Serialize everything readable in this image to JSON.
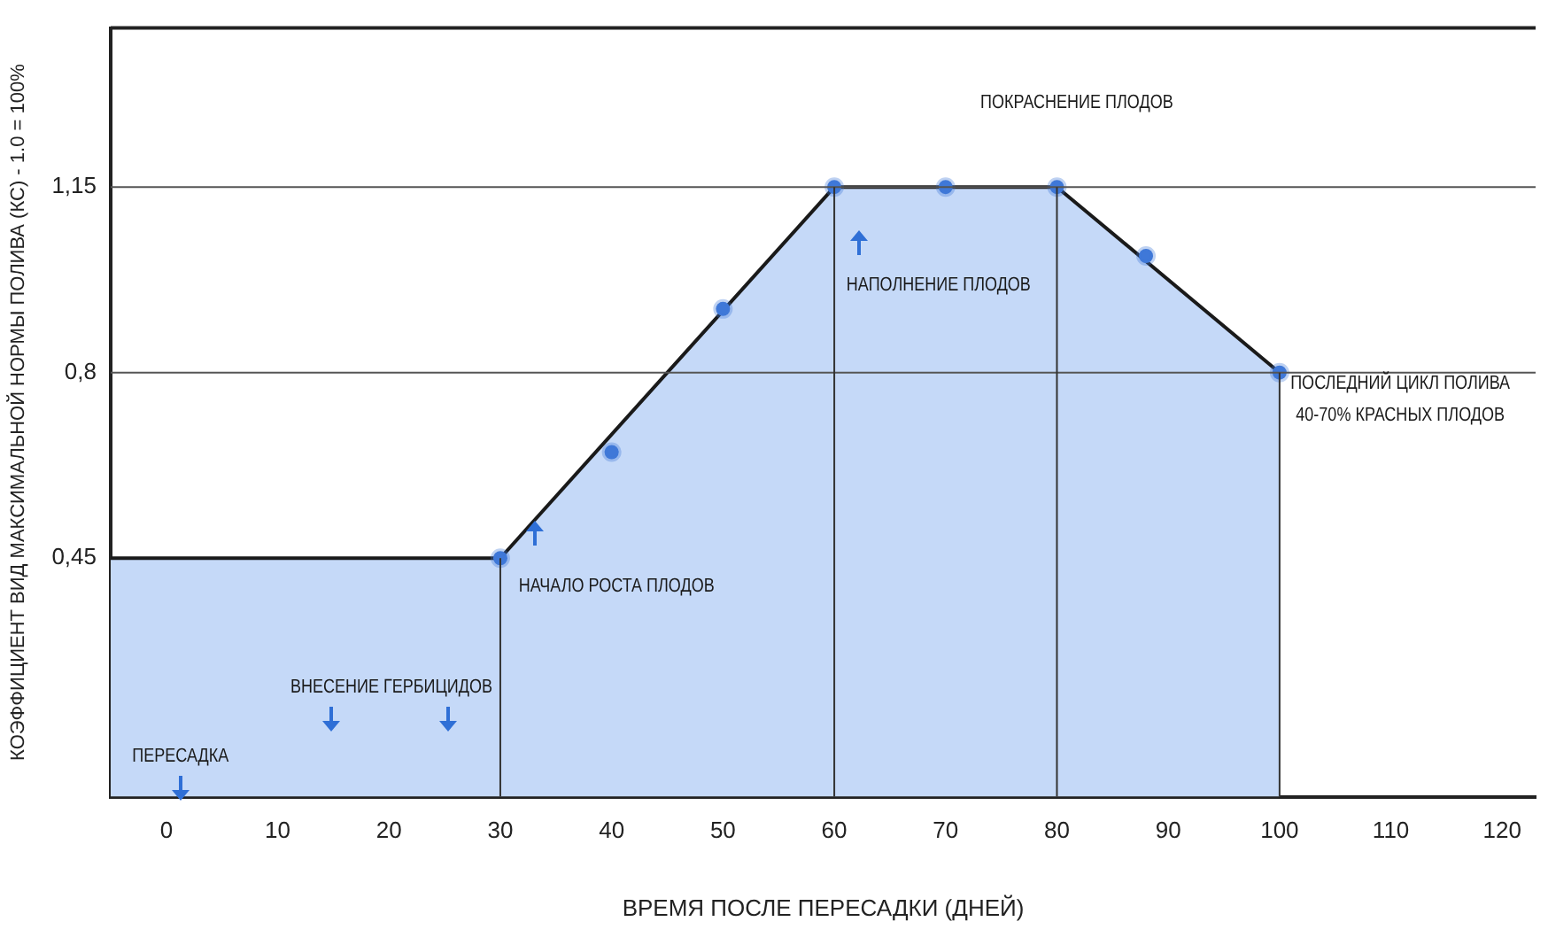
{
  "chart_data": {
    "type": "area",
    "xlabel": "ВРЕМЯ ПОСЛЕ ПЕРЕСАДКИ (ДНЕЙ)",
    "ylabel": "КОЭФФИЦИЕНТ ВИД МАКСИМАЛЬНОЙ НОРМЫ ПОЛИВА (КС) - 1.0 = 100%",
    "xlim": [
      -5,
      123
    ],
    "xticks": [
      0,
      10,
      20,
      30,
      40,
      50,
      60,
      70,
      80,
      90,
      100,
      110,
      120
    ],
    "ylim": [
      0,
      1.45
    ],
    "yticks": [
      {
        "value": 0.45,
        "label": "0,45"
      },
      {
        "value": 0.8,
        "label": "0,8"
      },
      {
        "value": 1.15,
        "label": "1,15"
      }
    ],
    "grid": false,
    "legend": false,
    "series": [
      {
        "color": "#c5d9f8",
        "marker": "none",
        "x": [
          -5,
          30,
          60,
          80,
          100
        ],
        "values": [
          0.45,
          0.45,
          1.15,
          1.15,
          0.8
        ]
      },
      {
        "type": "scatter",
        "color": "#3f78d8",
        "marker": "circle",
        "x": [
          30,
          40,
          50,
          60,
          70,
          80,
          88,
          100
        ],
        "values": [
          0.45,
          0.65,
          0.92,
          1.15,
          1.15,
          1.15,
          1.02,
          0.8
        ]
      }
    ],
    "ref_lines": [
      {
        "axis": "y",
        "value": 0.8,
        "color": "#555555"
      },
      {
        "axis": "y",
        "value": 1.15,
        "color": "#555555"
      },
      {
        "axis": "x",
        "value": 30,
        "color": "#333333"
      },
      {
        "axis": "x",
        "value": 60,
        "color": "#333333"
      },
      {
        "axis": "x",
        "value": 80,
        "color": "#333333"
      },
      {
        "axis": "x",
        "value": 100,
        "color": "#333333"
      }
    ],
    "annotations": [
      "ПЕРЕСАДКА",
      "ВНЕСЕНИЕ ГЕРБИЦИДОВ",
      "НАЧАЛО РОСТА ПЛОДОВ",
      "НАПОЛНЕНИЕ ПЛОДОВ",
      "ПОКРАСНЕНИЕ ПЛОДОВ",
      "ПОСЛЕДНИЙ ЦИКЛ ПОЛИВА\n40-70% КРАСНЫХ ПЛОДОВ"
    ]
  }
}
